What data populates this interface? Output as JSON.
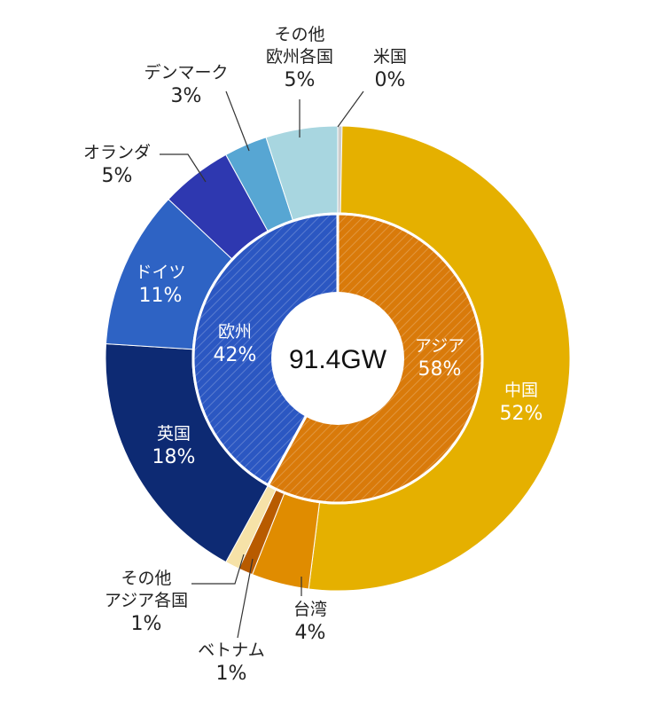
{
  "chart_data": {
    "type": "pie",
    "center_label": "91.4GW",
    "inner_ring": [
      {
        "name": "アジア",
        "value": 58,
        "pct_label": "58%",
        "color": "#D97A0A"
      },
      {
        "name": "欧州",
        "value": 42,
        "pct_label": "42%",
        "color": "#2B57C2"
      }
    ],
    "outer_ring": [
      {
        "name": "中国",
        "value": 52,
        "pct_label": "52%",
        "color": "#E5B000",
        "group": "アジア"
      },
      {
        "name": "台湾",
        "value": 4,
        "pct_label": "4%",
        "color": "#E08C00",
        "group": "アジア"
      },
      {
        "name": "ベトナム",
        "value": 1,
        "pct_label": "1%",
        "color": "#B85B00",
        "group": "アジア"
      },
      {
        "name": "その他アジア各国",
        "name_lines": [
          "その他",
          "アジア各国"
        ],
        "value": 1,
        "pct_label": "1%",
        "color": "#F6E2A8",
        "group": "アジア"
      },
      {
        "name": "英国",
        "value": 18,
        "pct_label": "18%",
        "color": "#0D2A73",
        "group": "欧州"
      },
      {
        "name": "ドイツ",
        "value": 11,
        "pct_label": "11%",
        "color": "#2E63C4",
        "group": "欧州"
      },
      {
        "name": "オランダ",
        "value": 5,
        "pct_label": "5%",
        "color": "#2E38B0",
        "group": "欧州"
      },
      {
        "name": "デンマーク",
        "value": 3,
        "pct_label": "3%",
        "color": "#57A6D3",
        "group": "欧州"
      },
      {
        "name": "その他欧州各国",
        "name_lines": [
          "その他",
          "欧州各国"
        ],
        "value": 5,
        "pct_label": "5%",
        "color": "#A8D6E0",
        "group": "欧州"
      },
      {
        "name": "米国",
        "value": 0,
        "pct_label": "0%",
        "color": "#CCCCCC",
        "group": "米州"
      }
    ]
  }
}
